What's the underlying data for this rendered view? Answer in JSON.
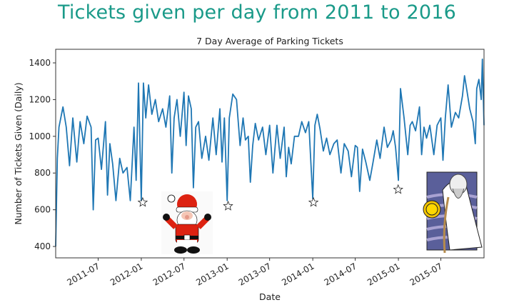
{
  "headline": "Tickets given per day from 2011 to 2016",
  "chart_data": {
    "type": "line",
    "title": "7 Day Average of Parking Tickets",
    "xlabel": "Date",
    "ylabel": "Number of Tickets Given (Daily)",
    "xlim": [
      "2011-01-01",
      "2016-01-01"
    ],
    "ylim": [
      338,
      1474
    ],
    "xticks": [
      "2011-07",
      "2012-01",
      "2012-07",
      "2013-01",
      "2013-07",
      "2014-01",
      "2014-07",
      "2015-01",
      "2015-07"
    ],
    "yticks": [
      400,
      600,
      800,
      1000,
      1200,
      1400
    ],
    "grid": false,
    "line_color": "#1f77b4",
    "series": [
      {
        "x": [
          "2011-01-01",
          "2011-01-08",
          "2011-01-15",
          "2011-02-01",
          "2011-02-15",
          "2011-03-01",
          "2011-03-15",
          "2011-04-01",
          "2011-04-15",
          "2011-05-01",
          "2011-05-15",
          "2011-06-01",
          "2011-06-10",
          "2011-06-20",
          "2011-07-01",
          "2011-07-15",
          "2011-08-01",
          "2011-08-10",
          "2011-08-20",
          "2011-09-01",
          "2011-09-15",
          "2011-10-01",
          "2011-10-15",
          "2011-11-01",
          "2011-11-15",
          "2011-12-01",
          "2011-12-10",
          "2011-12-20",
          "2012-01-01",
          "2012-01-10",
          "2012-01-20",
          "2012-02-01",
          "2012-02-15",
          "2012-03-01",
          "2012-03-15",
          "2012-04-01",
          "2012-04-15",
          "2012-05-01",
          "2012-05-10",
          "2012-05-20",
          "2012-06-01",
          "2012-06-15",
          "2012-07-01",
          "2012-07-10",
          "2012-07-20",
          "2012-08-01",
          "2012-08-10",
          "2012-08-20",
          "2012-09-01",
          "2012-09-15",
          "2012-10-01",
          "2012-10-15",
          "2012-11-01",
          "2012-11-15",
          "2012-12-01",
          "2012-12-10",
          "2012-12-20",
          "2013-01-01",
          "2013-01-10",
          "2013-01-25",
          "2013-02-10",
          "2013-02-25",
          "2013-03-10",
          "2013-03-20",
          "2013-04-01",
          "2013-04-10",
          "2013-04-20",
          "2013-05-01",
          "2013-05-15",
          "2013-06-01",
          "2013-06-15",
          "2013-07-01",
          "2013-07-15",
          "2013-08-01",
          "2013-08-15",
          "2013-09-01",
          "2013-09-10",
          "2013-09-20",
          "2013-10-01",
          "2013-10-15",
          "2013-11-01",
          "2013-11-15",
          "2013-12-01",
          "2013-12-15",
          "2014-01-01",
          "2014-01-10",
          "2014-01-20",
          "2014-02-01",
          "2014-02-15",
          "2014-03-01",
          "2014-03-15",
          "2014-04-01",
          "2014-04-15",
          "2014-05-01",
          "2014-05-15",
          "2014-06-01",
          "2014-06-15",
          "2014-07-01",
          "2014-07-10",
          "2014-07-20",
          "2014-08-01",
          "2014-08-15",
          "2014-09-01",
          "2014-09-15",
          "2014-10-01",
          "2014-10-15",
          "2014-11-01",
          "2014-11-15",
          "2014-12-01",
          "2014-12-10",
          "2014-12-20",
          "2015-01-01",
          "2015-01-10",
          "2015-01-25",
          "2015-02-10",
          "2015-02-20",
          "2015-03-01",
          "2015-03-15",
          "2015-04-01",
          "2015-04-10",
          "2015-04-20",
          "2015-05-01",
          "2015-05-15",
          "2015-06-01",
          "2015-06-15",
          "2015-07-01",
          "2015-07-10",
          "2015-07-20",
          "2015-08-01",
          "2015-08-15",
          "2015-09-01",
          "2015-09-15",
          "2015-10-01",
          "2015-10-10",
          "2015-10-20",
          "2015-11-01",
          "2015-11-15",
          "2015-11-25",
          "2015-12-01",
          "2015-12-10",
          "2015-12-20",
          "2015-12-25",
          "2016-01-01"
        ],
        "y": [
          400,
          880,
          1050,
          1160,
          1050,
          840,
          1100,
          860,
          1080,
          960,
          1110,
          1050,
          600,
          980,
          990,
          820,
          1080,
          680,
          960,
          850,
          650,
          880,
          800,
          830,
          650,
          1050,
          760,
          1290,
          650,
          1290,
          1100,
          1280,
          1120,
          1200,
          1080,
          1150,
          1050,
          1220,
          800,
          1100,
          1200,
          1000,
          1240,
          950,
          1220,
          1150,
          720,
          1050,
          1080,
          880,
          1000,
          870,
          1100,
          900,
          1150,
          860,
          1100,
          650,
          1100,
          1230,
          1200,
          950,
          1100,
          980,
          1000,
          750,
          950,
          1070,
          980,
          1050,
          900,
          1060,
          800,
          1060,
          880,
          1050,
          780,
          940,
          850,
          1000,
          1000,
          1080,
          1020,
          1080,
          660,
          1060,
          1120,
          1040,
          920,
          990,
          900,
          960,
          980,
          800,
          960,
          920,
          780,
          950,
          940,
          700,
          930,
          860,
          760,
          860,
          980,
          880,
          1050,
          940,
          980,
          1030,
          940,
          760,
          1260,
          1100,
          900,
          1060,
          1080,
          1030,
          1160,
          900,
          1050,
          990,
          1060,
          900,
          1060,
          1100,
          870,
          1100,
          1280,
          1050,
          1130,
          1100,
          1220,
          1330,
          1250,
          1150,
          1080,
          960,
          1260,
          1310,
          1200,
          1420,
          1060
        ]
      }
    ],
    "markers": {
      "symbol": "star",
      "points": [
        {
          "x": "2012-01-07",
          "y": 640
        },
        {
          "x": "2013-01-05",
          "y": 620
        },
        {
          "x": "2014-01-04",
          "y": 640
        },
        {
          "x": "2014-12-31",
          "y": 710
        }
      ]
    }
  }
}
